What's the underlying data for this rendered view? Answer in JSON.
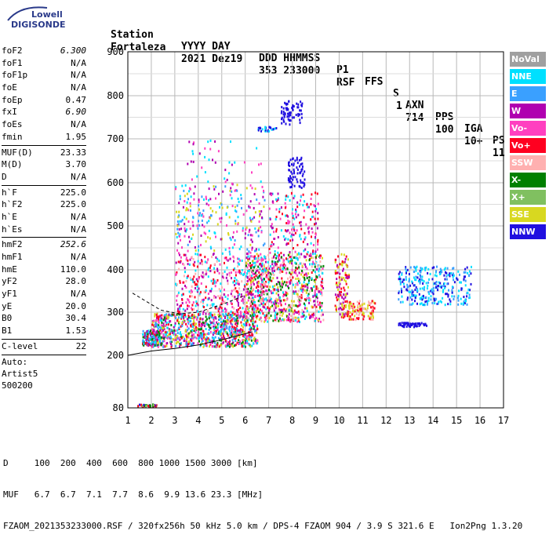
{
  "logo": {
    "line1": "Lowell",
    "line2": "DIGISONDE"
  },
  "header": {
    "labels": [
      "Station",
      "YYYY DAY",
      "DDD HHMMSS",
      "P1",
      "FFS",
      "S",
      "AXN",
      "PPS",
      "IGA",
      "PS"
    ],
    "values": [
      "Fortaleza",
      "2021 Dez19",
      "353 233000",
      "RSF",
      "",
      "1",
      "714",
      "100",
      "10+",
      "11"
    ]
  },
  "params": [
    {
      "k": "foF2",
      "v": "6.300",
      "italic": true
    },
    {
      "k": "foF1",
      "v": "N/A"
    },
    {
      "k": "foF1p",
      "v": "N/A"
    },
    {
      "k": "foE",
      "v": "N/A"
    },
    {
      "k": "foEp",
      "v": "0.47"
    },
    {
      "k": "fxI",
      "v": "6.90",
      "italic": true
    },
    {
      "k": "foEs",
      "v": "N/A"
    },
    {
      "k": "fmin",
      "v": "1.95"
    },
    {
      "sep": true
    },
    {
      "k": "MUF(D)",
      "v": "23.33"
    },
    {
      "k": "M(D)",
      "v": "3.70"
    },
    {
      "k": "D",
      "v": "N/A"
    },
    {
      "sep": true
    },
    {
      "k": "h`F",
      "v": "225.0"
    },
    {
      "k": "h`F2",
      "v": "225.0"
    },
    {
      "k": "h`E",
      "v": "N/A"
    },
    {
      "k": "h`Es",
      "v": "N/A"
    },
    {
      "sep": true
    },
    {
      "k": "hmF2",
      "v": "252.6",
      "italic": true
    },
    {
      "k": "hmF1",
      "v": "N/A"
    },
    {
      "k": "hmE",
      "v": "110.0"
    },
    {
      "k": "yF2",
      "v": "28.0"
    },
    {
      "k": "yF1",
      "v": "N/A"
    },
    {
      "k": "yE",
      "v": "20.0"
    },
    {
      "k": "B0",
      "v": "30.4"
    },
    {
      "k": "B1",
      "v": "1.53"
    },
    {
      "sep": true
    },
    {
      "k": "C-level",
      "v": "22"
    },
    {
      "sep": true
    }
  ],
  "auto": [
    "Auto:",
    "Artist5",
    "500200"
  ],
  "legend": [
    {
      "label": "NoVal",
      "color": "#a0a0a0"
    },
    {
      "label": "NNE",
      "color": "#00e0ff"
    },
    {
      "label": "E",
      "color": "#3aa0ff"
    },
    {
      "label": "W",
      "color": "#b000b0"
    },
    {
      "label": "Vo-",
      "color": "#ff40c0"
    },
    {
      "label": "Vo+",
      "color": "#ff0020"
    },
    {
      "label": "SSW",
      "color": "#ffb0b0"
    },
    {
      "label": "X-",
      "color": "#008000"
    },
    {
      "label": "X+",
      "color": "#80c060"
    },
    {
      "label": "SSE",
      "color": "#d8d820"
    },
    {
      "label": "NNW",
      "color": "#2010e0"
    }
  ],
  "chart_data": {
    "type": "scatter",
    "xlim": [
      1,
      17
    ],
    "ylim": [
      80,
      900
    ],
    "xticks": [
      "1",
      "2",
      "3",
      "4",
      "5",
      "6",
      "7",
      "8",
      "9",
      "10",
      "11",
      "12",
      "13",
      "14",
      "15",
      "16",
      "17"
    ],
    "yticks": [
      "80",
      "200",
      "300",
      "400",
      "500",
      "600",
      "700",
      "800",
      "900"
    ],
    "grid": true,
    "clusters": [
      {
        "x": [
          1.4,
          2.2
        ],
        "y": [
          85,
          90
        ],
        "colors": [
          "NNW",
          "X-",
          "Vo+",
          "X+"
        ],
        "n": 40
      },
      {
        "x": [
          1.6,
          2.3
        ],
        "y": [
          225,
          260
        ],
        "colors": [
          "Vo+",
          "NNE",
          "E",
          "W",
          "X-"
        ],
        "n": 160
      },
      {
        "x": [
          2.0,
          6.5
        ],
        "y": [
          222,
          300
        ],
        "colors": [
          "Vo+",
          "Vo-",
          "W",
          "NNE",
          "X-",
          "SSE",
          "E"
        ],
        "n": 900
      },
      {
        "x": [
          3.0,
          6.8
        ],
        "y": [
          300,
          440
        ],
        "colors": [
          "W",
          "Vo-",
          "Vo+",
          "SSW",
          "NNE"
        ],
        "n": 450
      },
      {
        "x": [
          3.0,
          6.8
        ],
        "y": [
          440,
          600
        ],
        "colors": [
          "W",
          "SSE",
          "NNE",
          "Vo-",
          "E"
        ],
        "n": 260
      },
      {
        "x": [
          3.5,
          6.7
        ],
        "y": [
          600,
          700
        ],
        "colors": [
          "NNE",
          "W",
          "Vo-"
        ],
        "n": 40
      },
      {
        "x": [
          6.0,
          9.3
        ],
        "y": [
          280,
          440
        ],
        "colors": [
          "Vo+",
          "W",
          "Vo-",
          "SSE",
          "NNE",
          "X-",
          "SSW"
        ],
        "n": 800
      },
      {
        "x": [
          7.0,
          9.1
        ],
        "y": [
          440,
          580
        ],
        "colors": [
          "W",
          "Vo-",
          "Vo+",
          "NNE"
        ],
        "n": 180
      },
      {
        "x": [
          6.5,
          7.3
        ],
        "y": [
          720,
          730
        ],
        "colors": [
          "NNW",
          "NNE"
        ],
        "n": 25
      },
      {
        "x": [
          7.5,
          8.4
        ],
        "y": [
          735,
          790
        ],
        "colors": [
          "NNW"
        ],
        "n": 70
      },
      {
        "x": [
          7.8,
          8.5
        ],
        "y": [
          590,
          660
        ],
        "colors": [
          "NNW"
        ],
        "n": 70
      },
      {
        "x": [
          9.8,
          10.4
        ],
        "y": [
          290,
          440
        ],
        "colors": [
          "Vo+",
          "W",
          "SSE"
        ],
        "n": 120
      },
      {
        "x": [
          10.3,
          11.5
        ],
        "y": [
          285,
          330
        ],
        "colors": [
          "SSE",
          "SSW",
          "Vo+"
        ],
        "n": 120
      },
      {
        "x": [
          12.5,
          13.7
        ],
        "y": [
          268,
          278
        ],
        "colors": [
          "NNW"
        ],
        "n": 60
      },
      {
        "x": [
          12.5,
          15.6
        ],
        "y": [
          320,
          410
        ],
        "colors": [
          "NNW",
          "E",
          "NNE"
        ],
        "n": 300
      }
    ],
    "curves": [
      {
        "name": "lower-edge",
        "x": [
          1.0,
          2.0,
          3.0,
          4.0,
          5.0,
          6.0,
          6.3
        ],
        "y": [
          200,
          210,
          216,
          224,
          236,
          250,
          255
        ]
      },
      {
        "name": "upper-dashed",
        "x": [
          1.2,
          1.8,
          2.4,
          3.2,
          4.0,
          5.0,
          6.0
        ],
        "y": [
          345,
          325,
          305,
          296,
          300,
          318,
          340
        ]
      }
    ]
  },
  "bottom": {
    "d_row": "D     100  200  400  600  800 1000 1500 3000 [km]",
    "muf_row": "MUF   6.7  6.7  7.1  7.7  8.6  9.9 13.6 23.3 [MHz]",
    "file_row": "FZAOM_2021353233000.RSF / 320fx256h 50 kHz 5.0 km / DPS-4 FZAOM 904 / 3.9 S 321.6 E   Ion2Png 1.3.20"
  }
}
